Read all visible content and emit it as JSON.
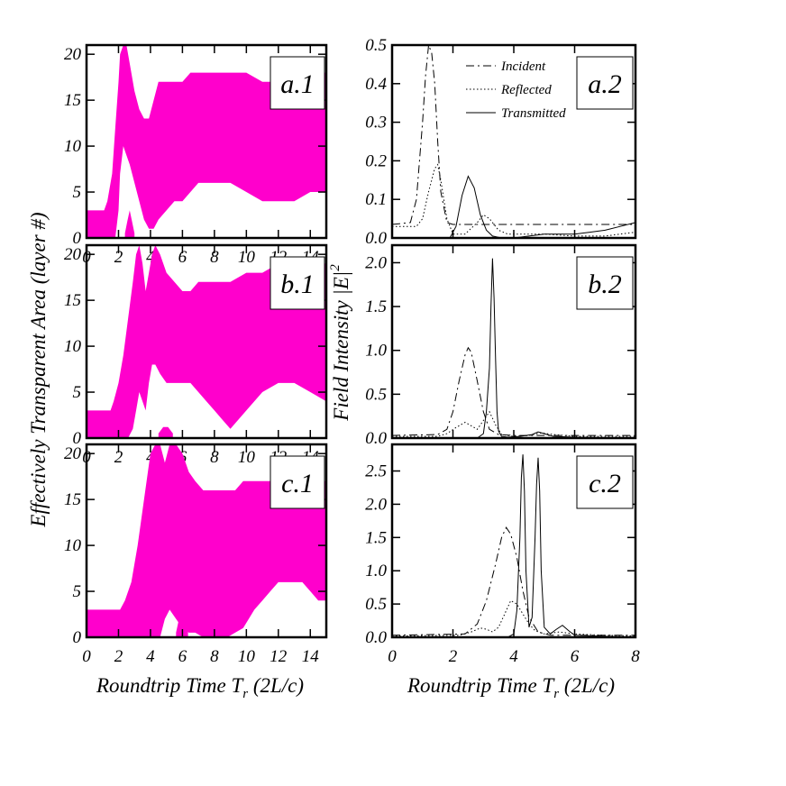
{
  "chart_data": [
    {
      "id": "a1",
      "type": "area",
      "panel_label": "a.1",
      "xlim": [
        0,
        15
      ],
      "ylim": [
        0,
        21
      ],
      "xticks": [
        "0",
        "2",
        "4",
        "6",
        "8",
        "10",
        "12",
        "14"
      ],
      "yticks": [
        "0",
        "5",
        "10",
        "15",
        "20"
      ],
      "color": "#ff00cc",
      "bands": [
        {
          "x": [
            0,
            1.1,
            1.3,
            1.6,
            1.8,
            2.0,
            2.1,
            2.3,
            2.5,
            2.7,
            3.0,
            3.3,
            3.6,
            3.9,
            4.2,
            4.5,
            5.0,
            5.5,
            6.0,
            6.5,
            7.0,
            8,
            9,
            10,
            11,
            12,
            13,
            14,
            15
          ],
          "top": [
            3,
            3,
            4,
            7,
            12,
            17,
            20,
            21,
            21,
            19,
            16,
            14,
            13,
            13,
            15,
            17,
            17,
            17,
            17,
            18,
            18,
            18,
            18,
            18,
            17,
            17,
            18,
            18,
            18
          ],
          "bottom": [
            0,
            0,
            0,
            0,
            0,
            3,
            7,
            10,
            9,
            8,
            6,
            4,
            2,
            1,
            1,
            2,
            3,
            4,
            4,
            5,
            6,
            6,
            6,
            5,
            4,
            4,
            4,
            5,
            5
          ]
        },
        {
          "x": [
            2.4,
            2.55,
            2.7,
            2.85,
            3.0
          ],
          "top": [
            0.5,
            1.8,
            3,
            1.8,
            0.5
          ],
          "bottom": [
            0,
            0,
            0,
            0,
            0
          ]
        }
      ]
    },
    {
      "id": "a2",
      "type": "line",
      "panel_label": "a.2",
      "xlim": [
        0,
        8
      ],
      "ylim": [
        0,
        0.5
      ],
      "xticks": [],
      "yticks": [
        "0.0",
        "0.1",
        "0.2",
        "0.3",
        "0.4",
        "0.5"
      ],
      "legend": [
        "Incident",
        "Reflected",
        "Transmitted"
      ],
      "series": [
        {
          "name": "Incident",
          "style": "dashdot",
          "x": [
            0,
            0.6,
            0.8,
            1.0,
            1.1,
            1.2,
            1.3,
            1.4,
            1.5,
            1.6,
            1.8,
            2.0,
            8
          ],
          "y": [
            0.035,
            0.04,
            0.1,
            0.3,
            0.42,
            0.5,
            0.48,
            0.4,
            0.25,
            0.12,
            0.04,
            0.035,
            0.035
          ]
        },
        {
          "name": "Reflected",
          "style": "dotted",
          "x": [
            0,
            0.8,
            1.0,
            1.2,
            1.4,
            1.5,
            1.6,
            1.8,
            2.0,
            2.4,
            2.8,
            3.0,
            3.2,
            3.5,
            3.8,
            4.2,
            5,
            6,
            7,
            7.5,
            8
          ],
          "y": [
            0.03,
            0.03,
            0.05,
            0.12,
            0.18,
            0.19,
            0.15,
            0.05,
            0.01,
            0.01,
            0.04,
            0.06,
            0.05,
            0.02,
            0.01,
            0.01,
            0.01,
            0.005,
            0.005,
            0.01,
            0.015
          ]
        },
        {
          "name": "Transmitted",
          "style": "solid",
          "x": [
            0,
            1.9,
            2.1,
            2.3,
            2.5,
            2.7,
            2.9,
            3.1,
            3.3,
            3.6,
            4.0,
            4.5,
            5,
            5.5,
            6,
            6.5,
            7,
            7.5,
            8
          ],
          "y": [
            0,
            0,
            0.03,
            0.11,
            0.16,
            0.13,
            0.06,
            0.02,
            0.005,
            0,
            0,
            0.005,
            0.01,
            0.01,
            0.01,
            0.015,
            0.02,
            0.03,
            0.04
          ]
        }
      ]
    },
    {
      "id": "b1",
      "type": "area",
      "panel_label": "b.1",
      "xlim": [
        0,
        15
      ],
      "ylim": [
        0,
        21
      ],
      "xticks": [
        "0",
        "2",
        "4",
        "6",
        "8",
        "10",
        "12",
        "14"
      ],
      "yticks": [
        "0",
        "5",
        "10",
        "15",
        "20"
      ],
      "color": "#ff00cc",
      "bands": [
        {
          "x": [
            0,
            1.5,
            1.7,
            2.0,
            2.3,
            2.6,
            2.9,
            3.1,
            3.3,
            3.5,
            3.7,
            3.9,
            4.1,
            4.3,
            4.6,
            5.0,
            5.5,
            6.0,
            6.5,
            7.0,
            7.5,
            8,
            8.5,
            9,
            10,
            11,
            12,
            13,
            14,
            15
          ],
          "top": [
            3,
            3,
            4,
            6,
            9,
            13,
            17,
            20,
            21,
            19,
            16,
            18,
            20,
            21,
            20,
            18,
            17,
            16,
            16,
            17,
            17,
            17,
            17,
            17,
            18,
            18,
            19,
            19,
            19,
            19
          ],
          "bottom": [
            0,
            0,
            0,
            0,
            0,
            0,
            1,
            3,
            5,
            4,
            3,
            6,
            8,
            8,
            7,
            6,
            6,
            6,
            6,
            5,
            4,
            3,
            2,
            1,
            3,
            5,
            6,
            6,
            5,
            4
          ]
        },
        {
          "x": [
            4.5,
            4.8,
            5.1,
            5.4
          ],
          "top": [
            0.5,
            1.2,
            1.2,
            0.5
          ],
          "bottom": [
            0,
            0,
            0,
            0
          ]
        }
      ]
    },
    {
      "id": "b2",
      "type": "line",
      "panel_label": "b.2",
      "xlim": [
        0,
        8
      ],
      "ylim": [
        0,
        2.2
      ],
      "xticks": [],
      "yticks": [
        "0.0",
        "0.5",
        "1.0",
        "1.5",
        "2.0"
      ],
      "series": [
        {
          "name": "Incident",
          "style": "dashdot",
          "x": [
            0,
            1.5,
            1.8,
            2.0,
            2.2,
            2.4,
            2.5,
            2.6,
            2.8,
            3.0,
            3.2,
            3.5,
            4,
            8
          ],
          "y": [
            0.03,
            0.04,
            0.1,
            0.3,
            0.65,
            0.95,
            1.03,
            0.98,
            0.65,
            0.3,
            0.1,
            0.04,
            0.03,
            0.03
          ]
        },
        {
          "name": "Reflected",
          "style": "dotted",
          "x": [
            0,
            1.5,
            1.8,
            2.1,
            2.4,
            2.6,
            2.8,
            3.0,
            3.2,
            3.4,
            3.6,
            4,
            4.5,
            4.9,
            5.3,
            6,
            8
          ],
          "y": [
            0.02,
            0.02,
            0.05,
            0.12,
            0.18,
            0.14,
            0.1,
            0.2,
            0.3,
            0.15,
            0.04,
            0.02,
            0.03,
            0.06,
            0.04,
            0.02,
            0.02
          ]
        },
        {
          "name": "Transmitted",
          "style": "solid",
          "x": [
            0,
            2.8,
            3.0,
            3.1,
            3.2,
            3.25,
            3.3,
            3.35,
            3.4,
            3.45,
            3.5,
            3.6,
            3.8,
            4.2,
            4.6,
            4.8,
            5.0,
            5.3,
            6,
            8
          ],
          "y": [
            0,
            0,
            0.05,
            0.3,
            0.8,
            1.5,
            2.05,
            1.6,
            0.9,
            0.3,
            0.08,
            0.02,
            0.01,
            0.02,
            0.04,
            0.07,
            0.05,
            0.02,
            0.01,
            0
          ]
        }
      ]
    },
    {
      "id": "c1",
      "type": "area",
      "panel_label": "c.1",
      "xlim": [
        0,
        15
      ],
      "ylim": [
        0,
        21
      ],
      "xticks": [
        "0",
        "2",
        "4",
        "6",
        "8",
        "10",
        "12",
        "14"
      ],
      "yticks": [
        "0",
        "5",
        "10",
        "15",
        "20"
      ],
      "color": "#ff00cc",
      "bands": [
        {
          "x": [
            0,
            2.1,
            2.4,
            2.8,
            3.2,
            3.6,
            4.0,
            4.3,
            4.6,
            4.9,
            5.2,
            5.6,
            6.0,
            6.4,
            6.8,
            7.3,
            7.8,
            8.3,
            8.8,
            9.3,
            9.8,
            10.5,
            11,
            11.5,
            12,
            12.5,
            13,
            13.5,
            14,
            14.5,
            15
          ],
          "top": [
            3,
            3,
            4,
            6,
            10,
            15,
            20,
            21,
            21,
            19,
            21,
            21,
            20,
            18,
            17,
            16,
            16,
            16,
            16,
            16,
            17,
            17,
            17,
            17,
            17,
            17,
            17,
            17,
            17,
            17,
            17
          ],
          "bottom": [
            0,
            0,
            0,
            0,
            0,
            0,
            0,
            0,
            0,
            2,
            3,
            2,
            1,
            0.5,
            0.5,
            0,
            0,
            0,
            0,
            0.5,
            1,
            3,
            4,
            5,
            6,
            6,
            6,
            6,
            5,
            4,
            4
          ]
        },
        {
          "x": [
            5.6,
            5.85,
            6.1,
            6.35
          ],
          "top": [
            0.5,
            2.5,
            2.5,
            0.5
          ],
          "bottom": [
            0,
            0,
            0,
            0
          ]
        }
      ]
    },
    {
      "id": "c2",
      "type": "line",
      "panel_label": "c.2",
      "xlim": [
        0,
        8
      ],
      "ylim": [
        0,
        2.9
      ],
      "xticks": [
        "0",
        "2",
        "4",
        "6",
        "8"
      ],
      "yticks": [
        "0.0",
        "0.5",
        "1.0",
        "1.5",
        "2.0",
        "2.5"
      ],
      "series": [
        {
          "name": "Incident",
          "style": "dashdot",
          "x": [
            0,
            2.4,
            2.8,
            3.1,
            3.4,
            3.6,
            3.75,
            3.9,
            4.1,
            4.3,
            4.5,
            4.8,
            5.2,
            8
          ],
          "y": [
            0.03,
            0.05,
            0.2,
            0.55,
            1.1,
            1.5,
            1.65,
            1.55,
            1.2,
            0.7,
            0.3,
            0.08,
            0.03,
            0.03
          ]
        },
        {
          "name": "Reflected",
          "style": "dotted",
          "x": [
            0,
            2.2,
            2.6,
            2.9,
            3.1,
            3.3,
            3.5,
            3.7,
            3.9,
            4.1,
            4.3,
            4.5,
            4.7,
            5.0,
            5.5,
            6.0,
            7,
            8
          ],
          "y": [
            0.02,
            0.03,
            0.08,
            0.14,
            0.12,
            0.08,
            0.15,
            0.35,
            0.55,
            0.5,
            0.35,
            0.2,
            0.1,
            0.05,
            0.08,
            0.05,
            0.03,
            0.02
          ]
        },
        {
          "name": "Transmitted",
          "style": "solid",
          "x": [
            0,
            3.8,
            4.0,
            4.1,
            4.2,
            4.25,
            4.3,
            4.35,
            4.4,
            4.5,
            4.6,
            4.7,
            4.75,
            4.8,
            4.85,
            4.9,
            5.0,
            5.2,
            5.4,
            5.6,
            5.8,
            6.0,
            8
          ],
          "y": [
            0,
            0,
            0.05,
            0.4,
            1.5,
            2.4,
            2.75,
            2.2,
            1.0,
            0.15,
            0.3,
            1.5,
            2.3,
            2.7,
            2.2,
            1.0,
            0.15,
            0.05,
            0.12,
            0.18,
            0.1,
            0.03,
            0
          ]
        }
      ]
    }
  ],
  "axes_text": {
    "left_ylabel": "Effectively Transparent Area (layer #)",
    "right_ylabel": "Field Intensity |E|",
    "right_ylabel_sup": "2",
    "left_xlabel_main": "Roundtrip Time T",
    "left_xlabel_sub": "r",
    "left_xlabel_tail": " (2L/c)",
    "right_xlabel_main": "Roundtrip Time T",
    "right_xlabel_sub": "r",
    "right_xlabel_tail": " (2L/c)"
  }
}
